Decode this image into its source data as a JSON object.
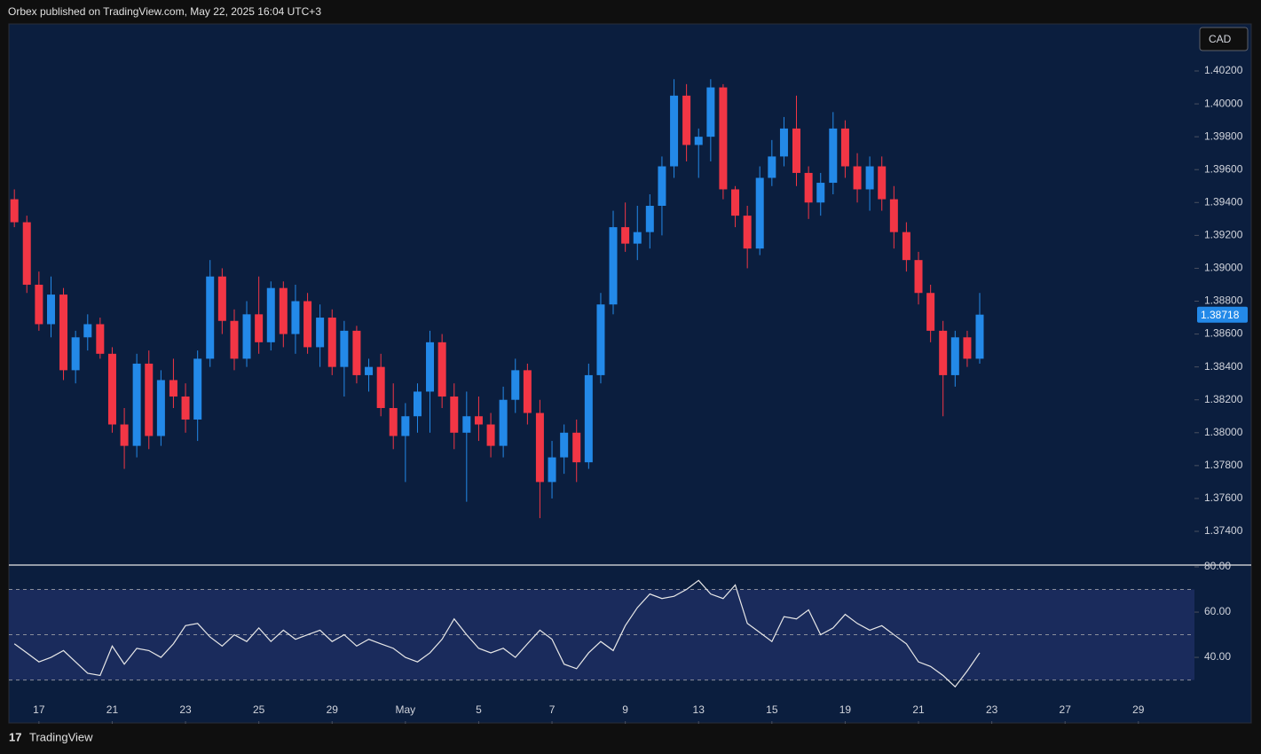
{
  "header": {
    "title": "Orbex published on TradingView.com, May 22, 2025 16:04 UTC+3"
  },
  "footer": {
    "brand": "TradingView"
  },
  "chart_data": [
    {
      "type": "candlestick",
      "currency": "CAD",
      "up_color": "#2389e8",
      "down_color": "#f23645",
      "x": [
        -0.67,
        -0.33,
        0,
        0.33,
        0.67,
        1,
        1.33,
        1.67,
        2,
        2.33,
        2.67,
        3,
        3.33,
        3.67,
        4,
        4.33,
        4.67,
        5,
        5.33,
        5.67,
        6,
        6.33,
        6.67,
        7,
        7.33,
        7.67,
        8,
        8.33,
        8.67,
        9,
        9.33,
        9.67,
        10,
        10.33,
        10.67,
        11,
        11.33,
        11.67,
        12,
        12.33,
        12.67,
        13,
        13.33,
        13.67,
        14,
        14.33,
        14.67,
        15,
        15.33,
        15.67,
        16,
        16.33,
        16.67,
        17,
        17.33,
        17.67,
        18,
        18.33,
        18.67,
        19,
        19.33,
        19.67,
        20,
        20.33,
        20.67,
        21,
        21.33,
        21.67,
        22,
        22.33,
        22.67,
        23,
        23.33,
        23.67,
        24,
        24.33,
        24.67,
        25,
        25.33,
        25.67
      ],
      "open": [
        1.3942,
        1.3928,
        1.389,
        1.3866,
        1.3884,
        1.3838,
        1.3858,
        1.3866,
        1.3848,
        1.3805,
        1.3792,
        1.3842,
        1.3798,
        1.3832,
        1.3822,
        1.3808,
        1.3845,
        1.3895,
        1.3868,
        1.3845,
        1.3872,
        1.3855,
        1.3888,
        1.386,
        1.388,
        1.3852,
        1.387,
        1.384,
        1.3862,
        1.3835,
        1.384,
        1.3815,
        1.3798,
        1.381,
        1.3825,
        1.3855,
        1.3822,
        1.38,
        1.381,
        1.3805,
        1.3792,
        1.382,
        1.3838,
        1.3812,
        1.377,
        1.3785,
        1.38,
        1.3782,
        1.3835,
        1.3878,
        1.3925,
        1.3915,
        1.3922,
        1.3938,
        1.3962,
        1.4005,
        1.3975,
        1.398,
        1.401,
        1.3948,
        1.3932,
        1.3912,
        1.3955,
        1.3968,
        1.3985,
        1.3958,
        1.394,
        1.3952,
        1.3985,
        1.3962,
        1.3948,
        1.3962,
        1.3942,
        1.3922,
        1.3905,
        1.3885,
        1.3862,
        1.3835,
        1.3858,
        1.3845
      ],
      "high": [
        1.3948,
        1.3932,
        1.3898,
        1.3895,
        1.3888,
        1.3862,
        1.3872,
        1.387,
        1.3852,
        1.3815,
        1.3848,
        1.385,
        1.3838,
        1.3845,
        1.383,
        1.385,
        1.3905,
        1.39,
        1.3875,
        1.388,
        1.3895,
        1.3892,
        1.3892,
        1.389,
        1.3885,
        1.3878,
        1.3875,
        1.3868,
        1.3865,
        1.3845,
        1.3848,
        1.383,
        1.3818,
        1.383,
        1.3862,
        1.386,
        1.383,
        1.3825,
        1.3822,
        1.3812,
        1.3828,
        1.3845,
        1.3842,
        1.382,
        1.3795,
        1.3805,
        1.3808,
        1.3842,
        1.3885,
        1.3935,
        1.394,
        1.3938,
        1.3945,
        1.3968,
        1.4015,
        1.4012,
        1.3985,
        1.4015,
        1.4012,
        1.395,
        1.3938,
        1.3962,
        1.3978,
        1.3992,
        1.4005,
        1.3962,
        1.3958,
        1.3995,
        1.399,
        1.397,
        1.3968,
        1.3968,
        1.395,
        1.3928,
        1.391,
        1.389,
        1.3868,
        1.3862,
        1.3862,
        1.3885
      ],
      "low": [
        1.3925,
        1.3885,
        1.3862,
        1.3858,
        1.3832,
        1.383,
        1.385,
        1.3845,
        1.38,
        1.3778,
        1.3785,
        1.379,
        1.3792,
        1.3815,
        1.38,
        1.3795,
        1.384,
        1.386,
        1.3838,
        1.384,
        1.3848,
        1.385,
        1.3852,
        1.3848,
        1.3848,
        1.384,
        1.3835,
        1.3822,
        1.383,
        1.3825,
        1.381,
        1.379,
        1.377,
        1.38,
        1.38,
        1.3815,
        1.379,
        1.3758,
        1.3795,
        1.3785,
        1.3785,
        1.3812,
        1.3805,
        1.3748,
        1.376,
        1.3775,
        1.377,
        1.3778,
        1.383,
        1.3872,
        1.391,
        1.3905,
        1.3912,
        1.392,
        1.3955,
        1.3965,
        1.3955,
        1.3965,
        1.3942,
        1.3925,
        1.39,
        1.3908,
        1.395,
        1.3962,
        1.395,
        1.393,
        1.3932,
        1.3945,
        1.3955,
        1.394,
        1.3935,
        1.3935,
        1.3912,
        1.3898,
        1.3878,
        1.3855,
        1.381,
        1.3828,
        1.384,
        1.3842
      ],
      "close": [
        1.3928,
        1.389,
        1.3866,
        1.3884,
        1.3838,
        1.3858,
        1.3866,
        1.3848,
        1.3805,
        1.3792,
        1.3842,
        1.3798,
        1.3832,
        1.3822,
        1.3808,
        1.3845,
        1.3895,
        1.3868,
        1.3845,
        1.3872,
        1.3855,
        1.3888,
        1.386,
        1.388,
        1.3852,
        1.387,
        1.384,
        1.3862,
        1.3835,
        1.384,
        1.3815,
        1.3798,
        1.381,
        1.3825,
        1.3855,
        1.3822,
        1.38,
        1.381,
        1.3805,
        1.3792,
        1.382,
        1.3838,
        1.3812,
        1.377,
        1.3785,
        1.38,
        1.3782,
        1.3835,
        1.3878,
        1.3925,
        1.3915,
        1.3922,
        1.3938,
        1.3962,
        1.4005,
        1.3975,
        1.398,
        1.401,
        1.3948,
        1.3932,
        1.3912,
        1.3955,
        1.3968,
        1.3985,
        1.3958,
        1.394,
        1.3952,
        1.3985,
        1.3962,
        1.3948,
        1.3962,
        1.3942,
        1.3922,
        1.3905,
        1.3885,
        1.3862,
        1.3835,
        1.3858,
        1.3845,
        1.38718
      ],
      "xlim": [
        -0.82,
        31.53
      ],
      "ylim": [
        1.37195,
        1.40486
      ],
      "yticks": [
        {
          "value": 1.374,
          "label": "1.37400"
        },
        {
          "value": 1.376,
          "label": "1.37600"
        },
        {
          "value": 1.378,
          "label": "1.37800"
        },
        {
          "value": 1.38,
          "label": "1.38000"
        },
        {
          "value": 1.382,
          "label": "1.38200"
        },
        {
          "value": 1.384,
          "label": "1.38400"
        },
        {
          "value": 1.386,
          "label": "1.38600"
        },
        {
          "value": 1.388,
          "label": "1.38800"
        },
        {
          "value": 1.39,
          "label": "1.39000"
        },
        {
          "value": 1.392,
          "label": "1.39200"
        },
        {
          "value": 1.394,
          "label": "1.39400"
        },
        {
          "value": 1.396,
          "label": "1.39600"
        },
        {
          "value": 1.398,
          "label": "1.39800"
        },
        {
          "value": 1.4,
          "label": "1.40000"
        },
        {
          "value": 1.402,
          "label": "1.40200"
        }
      ]
    },
    {
      "type": "line",
      "color": "#e8e8e8",
      "band_color": "#1a2b5c",
      "x": [
        -0.67,
        -0.33,
        0,
        0.33,
        0.67,
        1,
        1.33,
        1.67,
        2,
        2.33,
        2.67,
        3,
        3.33,
        3.67,
        4,
        4.33,
        4.67,
        5,
        5.33,
        5.67,
        6,
        6.33,
        6.67,
        7,
        7.33,
        7.67,
        8,
        8.33,
        8.67,
        9,
        9.33,
        9.67,
        10,
        10.33,
        10.67,
        11,
        11.33,
        11.67,
        12,
        12.33,
        12.67,
        13,
        13.33,
        13.67,
        14,
        14.33,
        14.67,
        15,
        15.33,
        15.67,
        16,
        16.33,
        16.67,
        17,
        17.33,
        17.67,
        18,
        18.33,
        18.67,
        19,
        19.33,
        19.67,
        20,
        20.33,
        20.67,
        21,
        21.33,
        21.67,
        22,
        22.33,
        22.67,
        23,
        23.33,
        23.67,
        24,
        24.33,
        24.67,
        25,
        25.33,
        25.67
      ],
      "values": [
        46,
        42,
        38,
        40,
        43,
        38,
        33,
        32,
        45,
        37,
        44,
        43,
        40,
        46,
        54,
        55,
        49,
        45,
        50,
        47,
        53,
        47,
        52,
        48,
        50,
        52,
        47,
        50,
        45,
        48,
        46,
        44,
        40,
        38,
        42,
        48,
        57,
        50,
        44,
        42,
        44,
        40,
        46,
        52,
        48,
        37,
        35,
        42,
        47,
        43,
        54,
        62,
        68,
        66,
        67,
        70,
        74,
        68,
        66,
        72,
        55,
        51,
        47,
        58,
        57,
        61,
        50,
        53,
        59,
        55,
        52,
        54,
        50,
        46,
        38,
        36,
        32,
        27,
        34,
        42
      ],
      "bands": [
        30,
        50,
        70
      ],
      "xlim": [
        -0.82,
        31.53
      ],
      "ylim": [
        11.8,
        80.4
      ],
      "yticks": [
        {
          "value": 40,
          "label": "40.00"
        },
        {
          "value": 60,
          "label": "60.00"
        },
        {
          "value": 80,
          "label": "80.00"
        }
      ],
      "xticks": [
        {
          "value": 0,
          "label": "17"
        },
        {
          "value": 2,
          "label": "21"
        },
        {
          "value": 4,
          "label": "23"
        },
        {
          "value": 6,
          "label": "25"
        },
        {
          "value": 8,
          "label": "29"
        },
        {
          "value": 10,
          "label": "May"
        },
        {
          "value": 12,
          "label": "5"
        },
        {
          "value": 14,
          "label": "7"
        },
        {
          "value": 16,
          "label": "9"
        },
        {
          "value": 18,
          "label": "13"
        },
        {
          "value": 20,
          "label": "15"
        },
        {
          "value": 22,
          "label": "19"
        },
        {
          "value": 24,
          "label": "21"
        },
        {
          "value": 26,
          "label": "23"
        },
        {
          "value": 28,
          "label": "27"
        },
        {
          "value": 30,
          "label": "29"
        }
      ]
    }
  ]
}
